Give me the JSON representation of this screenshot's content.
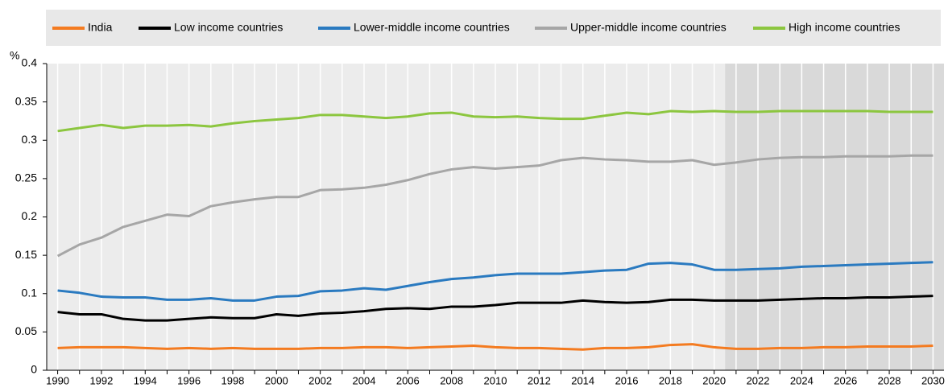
{
  "chart_data": {
    "type": "line",
    "y_unit": "%",
    "x": [
      1990,
      1991,
      1992,
      1993,
      1994,
      1995,
      1996,
      1997,
      1998,
      1999,
      2000,
      2001,
      2002,
      2003,
      2004,
      2005,
      2006,
      2007,
      2008,
      2009,
      2010,
      2011,
      2012,
      2013,
      2014,
      2015,
      2016,
      2017,
      2018,
      2019,
      2020,
      2021,
      2022,
      2023,
      2024,
      2025,
      2026,
      2027,
      2028,
      2029,
      2030
    ],
    "series": [
      {
        "name": "India",
        "color": "#f47b20",
        "values": [
          0.029,
          0.03,
          0.03,
          0.03,
          0.029,
          0.028,
          0.029,
          0.028,
          0.029,
          0.028,
          0.028,
          0.028,
          0.029,
          0.029,
          0.03,
          0.03,
          0.029,
          0.03,
          0.031,
          0.032,
          0.03,
          0.029,
          0.029,
          0.028,
          0.027,
          0.029,
          0.029,
          0.03,
          0.033,
          0.034,
          0.03,
          0.028,
          0.028,
          0.029,
          0.029,
          0.03,
          0.03,
          0.031,
          0.031,
          0.031,
          0.032
        ]
      },
      {
        "name": "Low income countries",
        "color": "#000000",
        "values": [
          0.076,
          0.073,
          0.073,
          0.067,
          0.065,
          0.065,
          0.067,
          0.069,
          0.068,
          0.068,
          0.073,
          0.071,
          0.074,
          0.075,
          0.077,
          0.08,
          0.081,
          0.08,
          0.083,
          0.083,
          0.085,
          0.088,
          0.088,
          0.088,
          0.091,
          0.089,
          0.088,
          0.089,
          0.092,
          0.092,
          0.091,
          0.091,
          0.091,
          0.092,
          0.093,
          0.094,
          0.094,
          0.095,
          0.095,
          0.096,
          0.097
        ]
      },
      {
        "name": "Lower-middle income countries",
        "color": "#2a7ac0",
        "values": [
          0.104,
          0.101,
          0.096,
          0.095,
          0.095,
          0.092,
          0.092,
          0.094,
          0.091,
          0.091,
          0.096,
          0.097,
          0.103,
          0.104,
          0.107,
          0.105,
          0.11,
          0.115,
          0.119,
          0.121,
          0.124,
          0.126,
          0.126,
          0.126,
          0.128,
          0.13,
          0.131,
          0.139,
          0.14,
          0.138,
          0.131,
          0.131,
          0.132,
          0.133,
          0.135,
          0.136,
          0.137,
          0.138,
          0.139,
          0.14,
          0.141
        ]
      },
      {
        "name": "Upper-middle income countries",
        "color": "#a6a6a6",
        "values": [
          0.149,
          0.164,
          0.173,
          0.187,
          0.195,
          0.203,
          0.201,
          0.214,
          0.219,
          0.223,
          0.226,
          0.226,
          0.235,
          0.236,
          0.238,
          0.242,
          0.248,
          0.256,
          0.262,
          0.265,
          0.263,
          0.265,
          0.267,
          0.274,
          0.277,
          0.275,
          0.274,
          0.272,
          0.272,
          0.274,
          0.268,
          0.271,
          0.275,
          0.277,
          0.278,
          0.278,
          0.279,
          0.279,
          0.279,
          0.28,
          0.28
        ]
      },
      {
        "name": "High income countries",
        "color": "#8cc63f",
        "values": [
          0.312,
          0.316,
          0.32,
          0.316,
          0.319,
          0.319,
          0.32,
          0.318,
          0.322,
          0.325,
          0.327,
          0.329,
          0.333,
          0.333,
          0.331,
          0.329,
          0.331,
          0.335,
          0.336,
          0.331,
          0.33,
          0.331,
          0.329,
          0.328,
          0.328,
          0.332,
          0.336,
          0.334,
          0.338,
          0.337,
          0.338,
          0.337,
          0.337,
          0.338,
          0.338,
          0.338,
          0.338,
          0.338,
          0.337,
          0.337,
          0.337
        ]
      }
    ],
    "xlim": [
      1989.5,
      2030.5
    ],
    "xticks": [
      1990,
      1992,
      1994,
      1996,
      1998,
      2000,
      2002,
      2004,
      2006,
      2008,
      2010,
      2012,
      2014,
      2016,
      2018,
      2020,
      2022,
      2024,
      2026,
      2028,
      2030
    ],
    "x_minor_ticks": [
      1991,
      1993,
      1995,
      1997,
      1999,
      2001,
      2003,
      2005,
      2007,
      2009,
      2011,
      2013,
      2015,
      2017,
      2019,
      2021,
      2023,
      2025,
      2027,
      2029
    ],
    "shaded_xlim": [
      2020.5,
      2030.5
    ],
    "ylim": [
      0,
      0.4
    ],
    "yticks": [
      0,
      0.05,
      0.1,
      0.15,
      0.2,
      0.25,
      0.3,
      0.35,
      0.4
    ],
    "legend": "top"
  }
}
